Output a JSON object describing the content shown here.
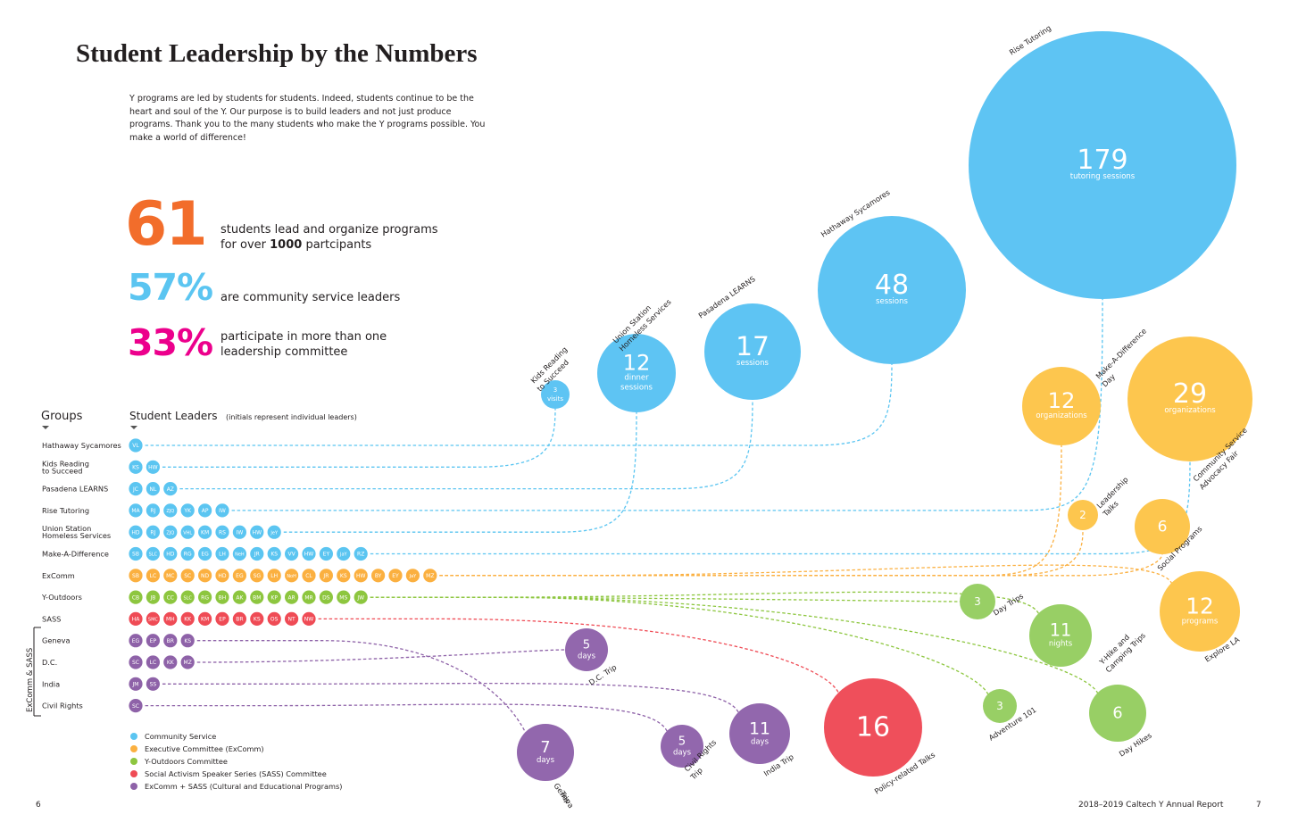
{
  "title": "Student Leadership by the Numbers",
  "intro": "Y programs are led by students for students. Indeed, students continue to be the heart and soul of the Y. Our purpose is to build leaders and not just produce programs. Thank you to the many students who make the Y programs possible. You make a world of difference!",
  "stats": [
    {
      "value": "61",
      "color": "#f26d2b",
      "text_a": "students lead and organize programs",
      "text_b_pre": "for over ",
      "text_b_bold": "1000",
      "text_b_post": " partcipants"
    },
    {
      "value": "57%",
      "color": "#5bc5f1",
      "text_a": "are community service leaders"
    },
    {
      "value": "33%",
      "color": "#ec008c",
      "text_a": "participate in more than one",
      "text_b": "leadership committee"
    }
  ],
  "colors": {
    "community": "#5bc5f1",
    "excomm": "#fbb040",
    "outdoors": "#8dc63f",
    "sass": "#ef4b55",
    "cultural": "#8e62a8",
    "circle_blue": "#5ec4f3",
    "circle_yellow": "#fdc64e",
    "circle_green": "#98cf65",
    "circle_red": "#ef4f5b",
    "circle_purple": "#9267ad"
  },
  "groups_header": "Groups",
  "leaders_header": "Student Leaders",
  "leaders_header_note": "(initials represent individual leaders)",
  "bracket_label": "ExComm & SASS",
  "groups": [
    {
      "name": "Hathaway Sycamores",
      "cat": "community",
      "initials": [
        "VL"
      ]
    },
    {
      "name": "Kids Reading|to Succeed",
      "cat": "community",
      "initials": [
        "KS",
        "HW"
      ]
    },
    {
      "name": "Pasadena LEARNS",
      "cat": "community",
      "initials": [
        "JC",
        "NL",
        "AZ"
      ]
    },
    {
      "name": "Rise Tutoring",
      "cat": "community",
      "initials": [
        "MA",
        "RJ",
        "ZJQ",
        "YK",
        "AP",
        "IW"
      ]
    },
    {
      "name": "Union Station|Homeless Services",
      "cat": "community",
      "initials": [
        "HD",
        "RJ",
        "ZJQ",
        "VHL",
        "KM",
        "RS",
        "IW",
        "HW",
        "JeY"
      ]
    },
    {
      "name": "Make-A-Difference",
      "cat": "community",
      "initials": [
        "SB",
        "SLC",
        "HD",
        "RG",
        "EG",
        "LH",
        "NeH",
        "JR",
        "KS",
        "VV",
        "HW",
        "EY",
        "JaY",
        "RZ"
      ]
    },
    {
      "name": "ExComm",
      "cat": "excomm",
      "initials": [
        "SB",
        "LC",
        "MC",
        "SC",
        "ND",
        "HD",
        "EG",
        "SG",
        "LH",
        "NoH",
        "CL",
        "JR",
        "KS",
        "HW",
        "BY",
        "EY",
        "JaY",
        "MZ"
      ]
    },
    {
      "name": "Y-Outdoors",
      "cat": "outdoors",
      "initials": [
        "CB",
        "JB",
        "CC",
        "SLC",
        "RG",
        "BH",
        "AK",
        "BM",
        "KP",
        "AR",
        "MR",
        "DS",
        "MS",
        "JW"
      ]
    },
    {
      "name": "SASS",
      "cat": "sass",
      "initials": [
        "HA",
        "SMC",
        "MH",
        "KK",
        "KM",
        "EP",
        "BR",
        "KS",
        "OS",
        "NT",
        "NW"
      ]
    },
    {
      "name": "Geneva",
      "cat": "cultural",
      "initials": [
        "EG",
        "EP",
        "BR",
        "KS"
      ]
    },
    {
      "name": "D.C.",
      "cat": "cultural",
      "initials": [
        "SC",
        "LC",
        "KK",
        "MZ"
      ]
    },
    {
      "name": "India",
      "cat": "cultural",
      "initials": [
        "JM",
        "SS"
      ]
    },
    {
      "name": "Civil Rights",
      "cat": "cultural",
      "initials": [
        "SC"
      ]
    }
  ],
  "programs": [
    {
      "id": "kids",
      "num": "3",
      "sub": "visits",
      "label": "Kids Reading|to Succeed",
      "color": "circle_blue",
      "cat": "community"
    },
    {
      "id": "union",
      "num": "12",
      "sub": "dinner|sessions",
      "label": "Union Station|Homeless Services",
      "color": "circle_blue",
      "cat": "community"
    },
    {
      "id": "pasadena",
      "num": "17",
      "sub": "sessions",
      "label": "Pasadena LEARNS",
      "color": "circle_blue",
      "cat": "community"
    },
    {
      "id": "hathaway",
      "num": "48",
      "sub": "sessions",
      "label": "Hathaway Sycamores",
      "color": "circle_blue",
      "cat": "community"
    },
    {
      "id": "rise",
      "num": "179",
      "sub": "tutoring sessions",
      "label": "Rise Tutoring",
      "color": "circle_blue",
      "cat": "community"
    },
    {
      "id": "mad",
      "num": "12",
      "sub": "organizations",
      "label": "Make-A-Difference|Day",
      "color": "circle_yellow",
      "cat": "excomm"
    },
    {
      "id": "csaf",
      "num": "29",
      "sub": "organizations",
      "label": "Community Service|Advocacy Fair",
      "color": "circle_yellow",
      "cat": "excomm"
    },
    {
      "id": "lt",
      "num": "2",
      "sub": "",
      "label": "Leadership|Talks",
      "color": "circle_yellow",
      "cat": "excomm"
    },
    {
      "id": "social",
      "num": "6",
      "sub": "",
      "label": "Social Programs",
      "color": "circle_yellow",
      "cat": "excomm"
    },
    {
      "id": "explore",
      "num": "12",
      "sub": "programs",
      "label": "Explore LA",
      "color": "circle_yellow",
      "cat": "excomm"
    },
    {
      "id": "daytrips",
      "num": "3",
      "sub": "",
      "label": "Day Trips",
      "color": "circle_green",
      "cat": "outdoors"
    },
    {
      "id": "yhike",
      "num": "11",
      "sub": "nights",
      "label": "Y-Hike and|Camping Trips",
      "color": "circle_green",
      "cat": "outdoors"
    },
    {
      "id": "adv",
      "num": "3",
      "sub": "",
      "label": "Adventure 101",
      "color": "circle_green",
      "cat": "outdoors"
    },
    {
      "id": "dayhikes",
      "num": "6",
      "sub": "",
      "label": "Day Hikes",
      "color": "circle_green",
      "cat": "outdoors"
    },
    {
      "id": "policy",
      "num": "16",
      "sub": "",
      "label": "Policy-related Talks",
      "color": "circle_red",
      "cat": "sass"
    },
    {
      "id": "dc",
      "num": "5",
      "sub": "days",
      "label": "D.C. Trip",
      "color": "circle_purple",
      "cat": "cultural"
    },
    {
      "id": "geneva",
      "num": "7",
      "sub": "days",
      "label": "Geneva|Trip",
      "color": "circle_purple",
      "cat": "cultural"
    },
    {
      "id": "civil",
      "num": "5",
      "sub": "days",
      "label": "Civil Rights|Trip",
      "color": "circle_purple",
      "cat": "cultural"
    },
    {
      "id": "india",
      "num": "11",
      "sub": "days",
      "label": "India Trip",
      "color": "circle_purple",
      "cat": "cultural"
    }
  ],
  "legend": [
    {
      "label": "Community Service",
      "cat": "community"
    },
    {
      "label": "Executive Committee (ExComm)",
      "cat": "excomm"
    },
    {
      "label": "Y-Outdoors Committee",
      "cat": "outdoors"
    },
    {
      "label": "Social Activism Speaker Series (SASS) Committee",
      "cat": "sass"
    },
    {
      "label": "ExComm + SASS (Cultural and Educational Programs)",
      "cat": "cultural"
    }
  ],
  "page_left": "6",
  "page_right": "7",
  "footer": "2018–2019 Caltech Y Annual Report"
}
